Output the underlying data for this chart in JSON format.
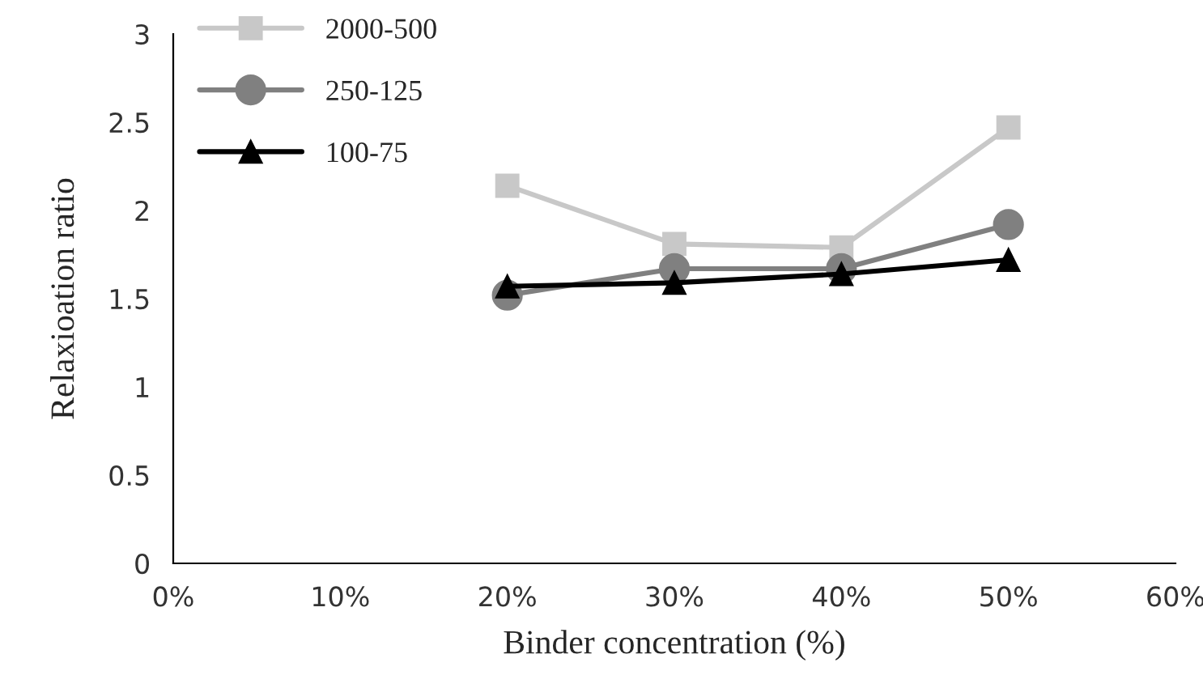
{
  "chart_data": {
    "type": "line",
    "xlabel": "Binder concentration (%)",
    "ylabel": "Relaxioation ratio",
    "x": [
      20,
      30,
      40,
      50
    ],
    "series": [
      {
        "name": "2000-500",
        "color": "#c8c8c8",
        "marker": "square",
        "values": [
          2.14,
          1.81,
          1.79,
          2.47
        ]
      },
      {
        "name": "250-125",
        "color": "#808080",
        "marker": "circle",
        "values": [
          1.52,
          1.67,
          1.67,
          1.92
        ]
      },
      {
        "name": "100-75",
        "color": "#000000",
        "marker": "triangle",
        "values": [
          1.57,
          1.59,
          1.64,
          1.72
        ]
      }
    ],
    "xlim": [
      0,
      60
    ],
    "xticks": [
      {
        "value": 0,
        "label": "0%"
      },
      {
        "value": 10,
        "label": "10%"
      },
      {
        "value": 20,
        "label": "20%"
      },
      {
        "value": 30,
        "label": "30%"
      },
      {
        "value": 40,
        "label": "40%"
      },
      {
        "value": 50,
        "label": "50%"
      },
      {
        "value": 60,
        "label": "60%"
      }
    ],
    "ylim": [
      0,
      3
    ],
    "yticks": [
      0,
      0.5,
      1,
      1.5,
      2,
      2.5,
      3
    ],
    "grid": false,
    "legend": "top left",
    "line_style": "solid"
  }
}
